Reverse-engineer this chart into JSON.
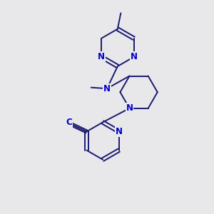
{
  "bg_color": "#e8e8eb",
  "bond_color": "#1a1a70",
  "atom_color": "#0000cc",
  "bond_width": 1.4,
  "font_size": 8.5,
  "fig_width": 3.0,
  "fig_height": 3.0,
  "dpi": 100,
  "xlim": [
    0,
    10
  ],
  "ylim": [
    0,
    10
  ]
}
